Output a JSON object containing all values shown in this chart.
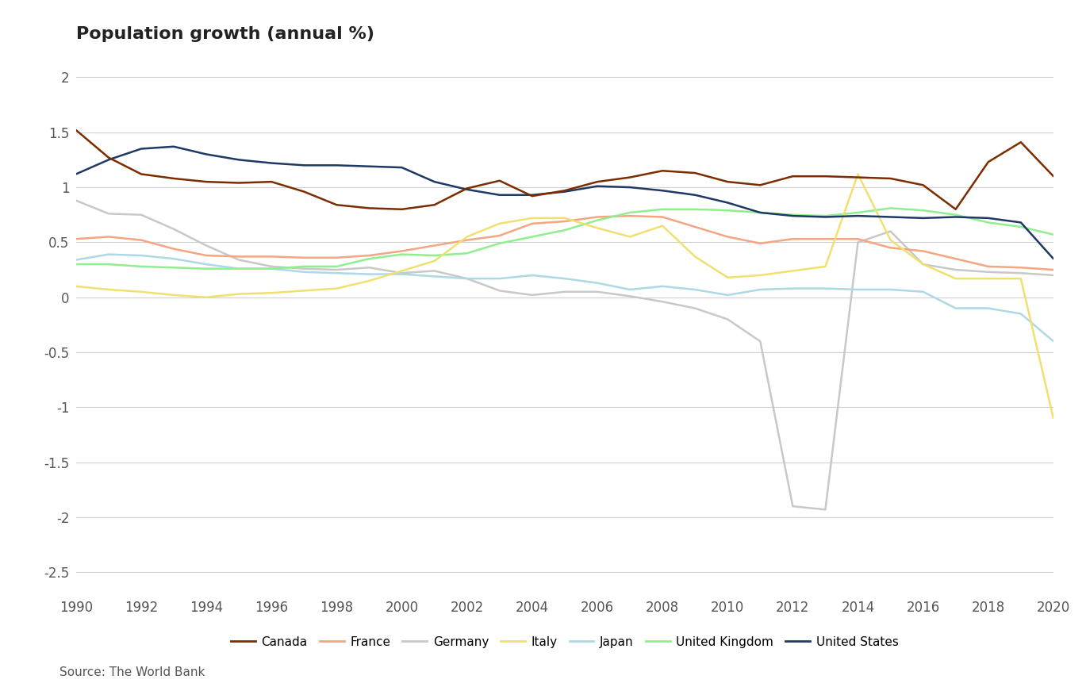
{
  "title": "Population growth (annual %)",
  "source": "Source: The World Bank",
  "years": [
    1990,
    1991,
    1992,
    1993,
    1994,
    1995,
    1996,
    1997,
    1998,
    1999,
    2000,
    2001,
    2002,
    2003,
    2004,
    2005,
    2006,
    2007,
    2008,
    2009,
    2010,
    2011,
    2012,
    2013,
    2014,
    2015,
    2016,
    2017,
    2018,
    2019,
    2020
  ],
  "series": {
    "Canada": {
      "color": "#7B2D00",
      "values": [
        1.52,
        1.27,
        1.12,
        1.08,
        1.05,
        1.04,
        1.05,
        0.96,
        0.84,
        0.81,
        0.8,
        0.84,
        0.99,
        1.06,
        0.92,
        0.97,
        1.05,
        1.09,
        1.15,
        1.13,
        1.05,
        1.02,
        1.1,
        1.1,
        1.09,
        1.08,
        1.02,
        0.8,
        1.23,
        1.41,
        1.1
      ],
      "zorder": 5
    },
    "France": {
      "color": "#F4A582",
      "values": [
        0.53,
        0.55,
        0.52,
        0.44,
        0.38,
        0.37,
        0.37,
        0.36,
        0.36,
        0.38,
        0.42,
        0.47,
        0.52,
        0.56,
        0.67,
        0.69,
        0.73,
        0.74,
        0.73,
        0.64,
        0.55,
        0.49,
        0.53,
        0.53,
        0.53,
        0.45,
        0.42,
        0.35,
        0.28,
        0.27,
        0.25
      ],
      "zorder": 3
    },
    "Germany": {
      "color": "#C8C8C8",
      "values": [
        0.88,
        0.76,
        0.75,
        0.62,
        0.47,
        0.34,
        0.28,
        0.26,
        0.25,
        0.27,
        0.22,
        0.24,
        0.17,
        0.06,
        0.02,
        0.05,
        0.05,
        0.01,
        -0.04,
        -0.1,
        -0.2,
        -0.4,
        -1.9,
        -1.93,
        0.5,
        0.6,
        0.3,
        0.25,
        0.23,
        0.22,
        0.2
      ],
      "zorder": 2
    },
    "Italy": {
      "color": "#F0E070",
      "values": [
        0.1,
        0.07,
        0.05,
        0.02,
        0.0,
        0.03,
        0.04,
        0.06,
        0.08,
        0.15,
        0.24,
        0.33,
        0.55,
        0.67,
        0.72,
        0.72,
        0.63,
        0.55,
        0.65,
        0.37,
        0.18,
        0.2,
        0.24,
        0.28,
        1.12,
        0.52,
        0.3,
        0.17,
        0.17,
        0.17,
        -1.1
      ],
      "zorder": 4
    },
    "Japan": {
      "color": "#ADD8E6",
      "values": [
        0.34,
        0.39,
        0.38,
        0.35,
        0.3,
        0.26,
        0.26,
        0.23,
        0.22,
        0.21,
        0.21,
        0.19,
        0.17,
        0.17,
        0.2,
        0.17,
        0.13,
        0.07,
        0.1,
        0.07,
        0.02,
        0.07,
        0.08,
        0.08,
        0.07,
        0.07,
        0.05,
        -0.1,
        -0.1,
        -0.15,
        -0.4
      ],
      "zorder": 3
    },
    "United Kingdom": {
      "color": "#90EE90",
      "values": [
        0.3,
        0.3,
        0.28,
        0.27,
        0.26,
        0.26,
        0.26,
        0.28,
        0.28,
        0.35,
        0.39,
        0.38,
        0.4,
        0.49,
        0.55,
        0.61,
        0.7,
        0.77,
        0.8,
        0.8,
        0.79,
        0.77,
        0.75,
        0.74,
        0.77,
        0.81,
        0.79,
        0.75,
        0.68,
        0.64,
        0.57
      ],
      "zorder": 3
    },
    "United States": {
      "color": "#1F3864",
      "values": [
        1.12,
        1.25,
        1.35,
        1.37,
        1.3,
        1.25,
        1.22,
        1.2,
        1.2,
        1.19,
        1.18,
        1.05,
        0.98,
        0.93,
        0.93,
        0.96,
        1.01,
        1.0,
        0.97,
        0.93,
        0.86,
        0.77,
        0.74,
        0.73,
        0.74,
        0.73,
        0.72,
        0.73,
        0.72,
        0.68,
        0.35
      ],
      "zorder": 4
    }
  },
  "xlim": [
    1990,
    2020
  ],
  "ylim": [
    -2.7,
    2.2
  ],
  "yticks": [
    2.0,
    1.5,
    1.0,
    0.5,
    0.0,
    -0.5,
    -1.0,
    -1.5,
    -2.0,
    -2.5
  ],
  "xticks": [
    1990,
    1992,
    1994,
    1996,
    1998,
    2000,
    2002,
    2004,
    2006,
    2008,
    2010,
    2012,
    2014,
    2016,
    2018,
    2020
  ],
  "background_color": "#FFFFFF",
  "grid_color": "#D0D0D0",
  "line_width": 1.8,
  "legend_order": [
    "Canada",
    "France",
    "Germany",
    "Italy",
    "Japan",
    "United Kingdom",
    "United States"
  ]
}
